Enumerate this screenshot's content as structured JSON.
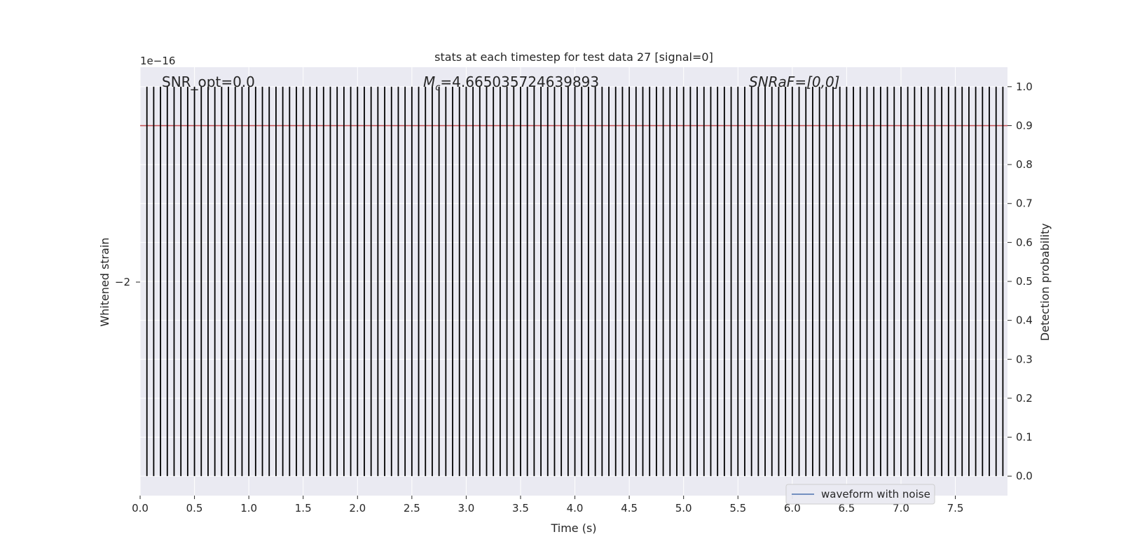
{
  "chart_data": {
    "type": "line",
    "title": "stats at each timestep for test data 27 [signal=0]",
    "xlabel": "Time (s)",
    "ylabel_left": "Whitened strain",
    "ylabel_right": "Detection probability",
    "left_axis_offset_text": "1e−16",
    "left_ytick_labels": [
      "−2"
    ],
    "xlim": [
      0.0,
      7.98
    ],
    "x_ticks": [
      0.0,
      0.5,
      1.0,
      1.5,
      2.0,
      2.5,
      3.0,
      3.5,
      4.0,
      4.5,
      5.0,
      5.5,
      6.0,
      6.5,
      7.0,
      7.5
    ],
    "x_tick_labels": [
      "0.0",
      "0.5",
      "1.0",
      "1.5",
      "2.0",
      "2.5",
      "3.0",
      "3.5",
      "4.0",
      "4.5",
      "5.0",
      "5.5",
      "6.0",
      "6.5",
      "7.0",
      "7.5"
    ],
    "ylim_right": [
      -0.05,
      1.05
    ],
    "y_ticks_right": [
      0.0,
      0.1,
      0.2,
      0.3,
      0.4,
      0.5,
      0.6,
      0.7,
      0.8,
      0.9,
      1.0
    ],
    "y_tick_labels_right": [
      "0.0",
      "0.1",
      "0.2",
      "0.3",
      "0.4",
      "0.5",
      "0.6",
      "0.7",
      "0.8",
      "0.9",
      "1.0"
    ],
    "threshold": 0.9,
    "detection_stems": {
      "start": 0.0625,
      "step": 0.0625,
      "count": 127,
      "value": 1.0
    },
    "annotations": {
      "snr_opt": "SNR_opt=0.0",
      "mc_symbol": "M",
      "mc_subscript": "c",
      "mc_value": "=4.665035724639893",
      "snraf": "SNRaF=[0,0]"
    },
    "legend": [
      {
        "label": "waveform with noise",
        "color": "#4c72b0"
      }
    ],
    "legend_position": "lower-right",
    "grid": true,
    "colors": {
      "plot_bg": "#eaeaf2",
      "grid": "#ffffff",
      "stem": "#000000",
      "threshold": "#c44e52",
      "series": "#4c72b0"
    }
  }
}
